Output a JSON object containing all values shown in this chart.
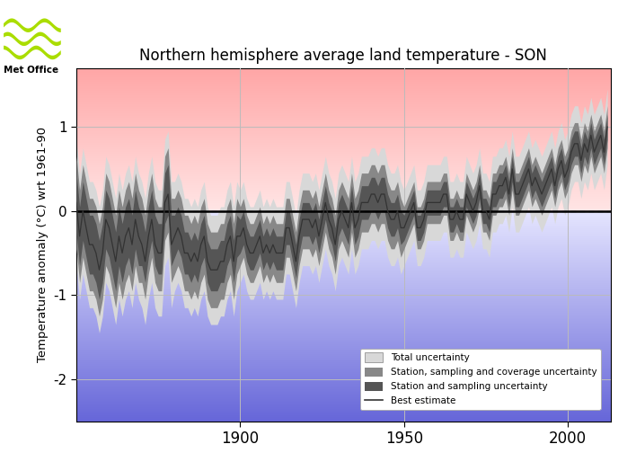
{
  "title": "Northern hemisphere average land temperature - SON",
  "ylabel": "Temperature anomaly (°C) wrt 1961-90",
  "xlim": [
    1850,
    2013
  ],
  "ylim": [
    -2.5,
    1.7
  ],
  "yticks": [
    -2,
    -1,
    0,
    1
  ],
  "xticks": [
    1900,
    1950,
    2000
  ],
  "years": [
    1850,
    1851,
    1852,
    1853,
    1854,
    1855,
    1856,
    1857,
    1858,
    1859,
    1860,
    1861,
    1862,
    1863,
    1864,
    1865,
    1866,
    1867,
    1868,
    1869,
    1870,
    1871,
    1872,
    1873,
    1874,
    1875,
    1876,
    1877,
    1878,
    1879,
    1880,
    1881,
    1882,
    1883,
    1884,
    1885,
    1886,
    1887,
    1888,
    1889,
    1890,
    1891,
    1892,
    1893,
    1894,
    1895,
    1896,
    1897,
    1898,
    1899,
    1900,
    1901,
    1902,
    1903,
    1904,
    1905,
    1906,
    1907,
    1908,
    1909,
    1910,
    1911,
    1912,
    1913,
    1914,
    1915,
    1916,
    1917,
    1918,
    1919,
    1920,
    1921,
    1922,
    1923,
    1924,
    1925,
    1926,
    1927,
    1928,
    1929,
    1930,
    1931,
    1932,
    1933,
    1934,
    1935,
    1936,
    1937,
    1938,
    1939,
    1940,
    1941,
    1942,
    1943,
    1944,
    1945,
    1946,
    1947,
    1948,
    1949,
    1950,
    1951,
    1952,
    1953,
    1954,
    1955,
    1956,
    1957,
    1958,
    1959,
    1960,
    1961,
    1962,
    1963,
    1964,
    1965,
    1966,
    1967,
    1968,
    1969,
    1970,
    1971,
    1972,
    1973,
    1974,
    1975,
    1976,
    1977,
    1978,
    1979,
    1980,
    1981,
    1982,
    1983,
    1984,
    1985,
    1986,
    1987,
    1988,
    1989,
    1990,
    1991,
    1992,
    1993,
    1994,
    1995,
    1996,
    1997,
    1998,
    1999,
    2000,
    2001,
    2002,
    2003,
    2004,
    2005,
    2006,
    2007,
    2008,
    2009,
    2010,
    2011,
    2012
  ],
  "best_estimate": [
    0.1,
    -0.3,
    0.0,
    -0.2,
    -0.4,
    -0.4,
    -0.5,
    -0.7,
    -0.5,
    -0.1,
    -0.2,
    -0.4,
    -0.6,
    -0.3,
    -0.5,
    -0.3,
    -0.2,
    -0.4,
    -0.1,
    -0.3,
    -0.4,
    -0.6,
    -0.3,
    -0.1,
    -0.4,
    -0.5,
    -0.5,
    0.1,
    0.2,
    -0.4,
    -0.3,
    -0.2,
    -0.3,
    -0.5,
    -0.5,
    -0.6,
    -0.5,
    -0.6,
    -0.4,
    -0.3,
    -0.6,
    -0.7,
    -0.7,
    -0.7,
    -0.6,
    -0.6,
    -0.4,
    -0.3,
    -0.6,
    -0.3,
    -0.3,
    -0.2,
    -0.4,
    -0.5,
    -0.5,
    -0.4,
    -0.3,
    -0.5,
    -0.4,
    -0.5,
    -0.4,
    -0.5,
    -0.5,
    -0.5,
    -0.2,
    -0.2,
    -0.4,
    -0.6,
    -0.3,
    -0.1,
    -0.1,
    -0.1,
    -0.2,
    -0.1,
    -0.3,
    -0.1,
    0.1,
    -0.1,
    -0.2,
    -0.4,
    -0.1,
    0.0,
    -0.1,
    -0.2,
    0.1,
    -0.2,
    -0.1,
    0.1,
    0.1,
    0.1,
    0.2,
    0.2,
    0.1,
    0.2,
    0.2,
    0.0,
    -0.1,
    -0.1,
    0.0,
    -0.2,
    -0.2,
    -0.1,
    0.0,
    0.1,
    -0.2,
    -0.2,
    -0.1,
    0.1,
    0.1,
    0.1,
    0.1,
    0.1,
    0.2,
    0.2,
    -0.1,
    -0.1,
    0.0,
    -0.1,
    -0.1,
    0.2,
    0.1,
    0.0,
    0.1,
    0.3,
    0.0,
    0.0,
    -0.1,
    0.2,
    0.2,
    0.3,
    0.3,
    0.4,
    0.2,
    0.5,
    0.2,
    0.2,
    0.3,
    0.4,
    0.5,
    0.3,
    0.4,
    0.3,
    0.2,
    0.3,
    0.4,
    0.5,
    0.3,
    0.5,
    0.6,
    0.4,
    0.5,
    0.7,
    0.8,
    0.8,
    0.6,
    0.8,
    0.7,
    0.9,
    0.7,
    0.8,
    0.9,
    0.7,
    1.0
  ],
  "total_unc_low": [
    -0.65,
    -1.05,
    -0.75,
    -0.95,
    -1.15,
    -1.15,
    -1.25,
    -1.45,
    -1.25,
    -0.85,
    -0.95,
    -1.15,
    -1.35,
    -1.05,
    -1.25,
    -1.05,
    -0.95,
    -1.15,
    -0.85,
    -1.05,
    -1.15,
    -1.35,
    -1.05,
    -0.85,
    -1.15,
    -1.25,
    -1.25,
    -0.65,
    -0.55,
    -1.15,
    -0.95,
    -0.85,
    -0.95,
    -1.15,
    -1.15,
    -1.25,
    -1.15,
    -1.25,
    -1.05,
    -0.95,
    -1.25,
    -1.35,
    -1.35,
    -1.35,
    -1.25,
    -1.25,
    -1.05,
    -0.95,
    -1.25,
    -0.95,
    -0.85,
    -0.75,
    -0.95,
    -1.05,
    -1.05,
    -0.95,
    -0.85,
    -1.05,
    -0.95,
    -1.05,
    -0.95,
    -1.05,
    -1.05,
    -1.05,
    -0.75,
    -0.75,
    -0.95,
    -1.15,
    -0.85,
    -0.65,
    -0.65,
    -0.65,
    -0.75,
    -0.65,
    -0.85,
    -0.65,
    -0.45,
    -0.65,
    -0.75,
    -0.95,
    -0.65,
    -0.55,
    -0.65,
    -0.75,
    -0.45,
    -0.75,
    -0.65,
    -0.45,
    -0.45,
    -0.45,
    -0.35,
    -0.35,
    -0.45,
    -0.35,
    -0.35,
    -0.55,
    -0.65,
    -0.65,
    -0.55,
    -0.75,
    -0.65,
    -0.55,
    -0.45,
    -0.35,
    -0.65,
    -0.65,
    -0.55,
    -0.35,
    -0.35,
    -0.35,
    -0.35,
    -0.35,
    -0.25,
    -0.25,
    -0.55,
    -0.55,
    -0.45,
    -0.55,
    -0.55,
    -0.25,
    -0.35,
    -0.45,
    -0.35,
    -0.15,
    -0.45,
    -0.45,
    -0.55,
    -0.25,
    -0.25,
    -0.15,
    -0.15,
    -0.05,
    -0.25,
    0.05,
    -0.25,
    -0.25,
    -0.15,
    -0.05,
    0.05,
    -0.15,
    -0.05,
    -0.15,
    -0.25,
    -0.15,
    -0.05,
    0.05,
    -0.15,
    0.05,
    0.15,
    -0.05,
    0.05,
    0.25,
    0.35,
    0.35,
    0.15,
    0.35,
    0.25,
    0.45,
    0.25,
    0.35,
    0.45,
    0.25,
    0.55
  ],
  "total_unc_high": [
    0.85,
    0.45,
    0.75,
    0.55,
    0.35,
    0.35,
    0.25,
    0.05,
    0.25,
    0.65,
    0.55,
    0.35,
    0.15,
    0.45,
    0.25,
    0.45,
    0.55,
    0.35,
    0.65,
    0.45,
    0.35,
    0.15,
    0.45,
    0.65,
    0.35,
    0.25,
    0.25,
    0.85,
    0.95,
    0.35,
    0.35,
    0.45,
    0.35,
    0.15,
    0.15,
    0.05,
    0.15,
    0.05,
    0.25,
    0.35,
    0.05,
    -0.05,
    -0.05,
    -0.05,
    0.05,
    0.05,
    0.25,
    0.35,
    0.05,
    0.35,
    0.25,
    0.35,
    0.15,
    0.05,
    0.05,
    0.15,
    0.25,
    0.05,
    0.15,
    0.05,
    0.15,
    0.05,
    0.05,
    0.05,
    0.35,
    0.35,
    0.15,
    -0.05,
    0.25,
    0.45,
    0.45,
    0.45,
    0.35,
    0.45,
    0.25,
    0.45,
    0.65,
    0.45,
    0.35,
    0.15,
    0.45,
    0.55,
    0.45,
    0.35,
    0.65,
    0.35,
    0.45,
    0.65,
    0.65,
    0.65,
    0.75,
    0.75,
    0.65,
    0.75,
    0.75,
    0.55,
    0.45,
    0.45,
    0.55,
    0.35,
    0.25,
    0.35,
    0.45,
    0.55,
    0.25,
    0.25,
    0.35,
    0.55,
    0.55,
    0.55,
    0.55,
    0.55,
    0.65,
    0.65,
    0.35,
    0.35,
    0.45,
    0.35,
    0.35,
    0.65,
    0.55,
    0.45,
    0.55,
    0.75,
    0.45,
    0.45,
    0.35,
    0.65,
    0.65,
    0.75,
    0.75,
    0.85,
    0.65,
    0.95,
    0.65,
    0.65,
    0.75,
    0.85,
    0.95,
    0.75,
    0.85,
    0.75,
    0.65,
    0.75,
    0.85,
    0.95,
    0.75,
    0.95,
    1.05,
    0.85,
    0.95,
    1.15,
    1.25,
    1.25,
    1.05,
    1.25,
    1.15,
    1.35,
    1.15,
    1.25,
    1.35,
    1.15,
    1.45
  ],
  "ssc_unc_low": [
    -0.45,
    -0.85,
    -0.55,
    -0.75,
    -0.95,
    -0.95,
    -1.05,
    -1.25,
    -1.05,
    -0.65,
    -0.75,
    -0.95,
    -1.15,
    -0.85,
    -1.05,
    -0.85,
    -0.75,
    -0.95,
    -0.65,
    -0.85,
    -0.85,
    -1.05,
    -0.75,
    -0.55,
    -0.85,
    -0.95,
    -0.95,
    -0.35,
    -0.25,
    -0.85,
    -0.75,
    -0.65,
    -0.75,
    -0.95,
    -0.95,
    -1.05,
    -0.95,
    -1.05,
    -0.85,
    -0.75,
    -1.05,
    -1.15,
    -1.15,
    -1.15,
    -1.05,
    -1.05,
    -0.85,
    -0.75,
    -1.05,
    -0.75,
    -0.65,
    -0.55,
    -0.75,
    -0.85,
    -0.85,
    -0.75,
    -0.65,
    -0.85,
    -0.75,
    -0.85,
    -0.75,
    -0.85,
    -0.85,
    -0.85,
    -0.55,
    -0.55,
    -0.75,
    -0.95,
    -0.65,
    -0.45,
    -0.45,
    -0.45,
    -0.55,
    -0.45,
    -0.65,
    -0.45,
    -0.25,
    -0.45,
    -0.55,
    -0.75,
    -0.45,
    -0.35,
    -0.45,
    -0.55,
    -0.25,
    -0.55,
    -0.45,
    -0.25,
    -0.25,
    -0.25,
    -0.15,
    -0.15,
    -0.25,
    -0.15,
    -0.15,
    -0.35,
    -0.45,
    -0.45,
    -0.35,
    -0.55,
    -0.45,
    -0.35,
    -0.25,
    -0.15,
    -0.45,
    -0.45,
    -0.35,
    -0.15,
    -0.15,
    -0.15,
    -0.15,
    -0.15,
    -0.05,
    -0.05,
    -0.35,
    -0.35,
    -0.25,
    -0.35,
    -0.35,
    -0.05,
    -0.15,
    -0.25,
    -0.15,
    0.05,
    -0.25,
    -0.25,
    -0.35,
    -0.05,
    -0.05,
    0.05,
    0.05,
    0.15,
    -0.05,
    0.25,
    -0.05,
    -0.05,
    0.05,
    0.15,
    0.25,
    0.05,
    0.15,
    0.05,
    -0.05,
    0.05,
    0.15,
    0.25,
    0.05,
    0.25,
    0.35,
    0.15,
    0.25,
    0.45,
    0.55,
    0.55,
    0.35,
    0.55,
    0.45,
    0.65,
    0.45,
    0.55,
    0.65,
    0.45,
    0.75
  ],
  "ssc_unc_high": [
    0.65,
    0.25,
    0.55,
    0.35,
    0.15,
    0.15,
    0.05,
    -0.15,
    0.05,
    0.45,
    0.35,
    0.15,
    -0.05,
    0.25,
    0.05,
    0.25,
    0.35,
    0.15,
    0.45,
    0.25,
    0.15,
    -0.05,
    0.25,
    0.45,
    0.15,
    0.05,
    0.05,
    0.65,
    0.75,
    0.15,
    0.15,
    0.25,
    0.15,
    -0.05,
    -0.05,
    -0.15,
    -0.05,
    -0.15,
    0.05,
    0.15,
    -0.15,
    -0.25,
    -0.25,
    -0.25,
    -0.15,
    -0.15,
    0.05,
    0.15,
    -0.15,
    0.15,
    0.05,
    0.15,
    -0.05,
    -0.15,
    -0.15,
    -0.05,
    0.05,
    -0.15,
    -0.05,
    -0.15,
    -0.05,
    -0.15,
    -0.15,
    -0.15,
    0.15,
    0.15,
    -0.05,
    -0.25,
    0.05,
    0.25,
    0.25,
    0.25,
    0.15,
    0.25,
    0.05,
    0.25,
    0.45,
    0.25,
    0.15,
    -0.05,
    0.25,
    0.35,
    0.25,
    0.15,
    0.45,
    0.15,
    0.25,
    0.45,
    0.45,
    0.45,
    0.55,
    0.55,
    0.45,
    0.55,
    0.55,
    0.35,
    0.25,
    0.25,
    0.35,
    0.15,
    0.05,
    0.15,
    0.25,
    0.35,
    0.05,
    0.05,
    0.15,
    0.35,
    0.35,
    0.35,
    0.35,
    0.35,
    0.45,
    0.45,
    0.15,
    0.15,
    0.25,
    0.15,
    0.15,
    0.45,
    0.35,
    0.25,
    0.35,
    0.55,
    0.25,
    0.25,
    0.15,
    0.45,
    0.45,
    0.55,
    0.55,
    0.65,
    0.45,
    0.75,
    0.45,
    0.45,
    0.55,
    0.65,
    0.75,
    0.55,
    0.65,
    0.55,
    0.45,
    0.55,
    0.65,
    0.75,
    0.55,
    0.75,
    0.85,
    0.65,
    0.75,
    0.95,
    1.05,
    1.05,
    0.85,
    1.05,
    0.95,
    1.15,
    0.95,
    1.05,
    1.15,
    0.95,
    1.25
  ],
  "ss_unc_low": [
    -0.25,
    -0.65,
    -0.35,
    -0.55,
    -0.75,
    -0.75,
    -0.85,
    -1.05,
    -0.85,
    -0.45,
    -0.55,
    -0.75,
    -0.95,
    -0.65,
    -0.85,
    -0.65,
    -0.55,
    -0.75,
    -0.45,
    -0.65,
    -0.65,
    -0.85,
    -0.55,
    -0.35,
    -0.65,
    -0.75,
    -0.75,
    -0.15,
    -0.05,
    -0.65,
    -0.55,
    -0.45,
    -0.55,
    -0.75,
    -0.75,
    -0.85,
    -0.75,
    -0.85,
    -0.65,
    -0.55,
    -0.85,
    -0.95,
    -0.95,
    -0.95,
    -0.85,
    -0.85,
    -0.65,
    -0.55,
    -0.85,
    -0.55,
    -0.5,
    -0.4,
    -0.6,
    -0.7,
    -0.7,
    -0.6,
    -0.5,
    -0.7,
    -0.6,
    -0.7,
    -0.6,
    -0.7,
    -0.7,
    -0.7,
    -0.4,
    -0.4,
    -0.6,
    -0.8,
    -0.5,
    -0.3,
    -0.3,
    -0.3,
    -0.4,
    -0.3,
    -0.5,
    -0.3,
    -0.1,
    -0.3,
    -0.4,
    -0.6,
    -0.3,
    -0.2,
    -0.3,
    -0.4,
    -0.1,
    -0.4,
    -0.3,
    -0.1,
    -0.1,
    -0.1,
    0.0,
    0.0,
    -0.1,
    0.0,
    0.0,
    -0.2,
    -0.3,
    -0.3,
    -0.2,
    -0.4,
    -0.35,
    -0.25,
    -0.15,
    -0.05,
    -0.35,
    -0.35,
    -0.25,
    -0.05,
    -0.05,
    -0.05,
    -0.05,
    -0.05,
    0.05,
    0.05,
    -0.25,
    -0.25,
    -0.15,
    -0.25,
    -0.25,
    0.05,
    -0.05,
    -0.15,
    -0.05,
    0.15,
    -0.15,
    -0.15,
    -0.25,
    0.05,
    0.05,
    0.15,
    0.15,
    0.25,
    0.05,
    0.35,
    0.05,
    0.05,
    0.15,
    0.25,
    0.35,
    0.15,
    0.25,
    0.15,
    0.05,
    0.15,
    0.25,
    0.35,
    0.15,
    0.35,
    0.45,
    0.25,
    0.35,
    0.55,
    0.65,
    0.65,
    0.45,
    0.65,
    0.55,
    0.75,
    0.55,
    0.65,
    0.75,
    0.55,
    0.85
  ],
  "ss_unc_high": [
    0.45,
    0.05,
    0.35,
    0.15,
    -0.05,
    -0.05,
    -0.15,
    -0.35,
    -0.15,
    0.25,
    0.15,
    -0.05,
    -0.25,
    0.05,
    -0.15,
    0.05,
    0.15,
    -0.05,
    0.25,
    0.05,
    -0.05,
    -0.25,
    0.05,
    0.25,
    -0.05,
    -0.15,
    -0.15,
    0.45,
    0.55,
    -0.05,
    -0.05,
    0.05,
    -0.05,
    -0.25,
    -0.25,
    -0.35,
    -0.25,
    -0.35,
    -0.15,
    -0.05,
    -0.35,
    -0.45,
    -0.45,
    -0.45,
    -0.35,
    -0.35,
    -0.15,
    -0.05,
    -0.35,
    -0.05,
    -0.1,
    0.0,
    -0.2,
    -0.3,
    -0.3,
    -0.2,
    -0.1,
    -0.3,
    -0.2,
    -0.3,
    -0.2,
    -0.3,
    -0.3,
    -0.3,
    0.0,
    0.0,
    -0.2,
    -0.4,
    -0.1,
    0.1,
    0.1,
    0.1,
    0.0,
    0.1,
    -0.1,
    0.1,
    0.3,
    0.1,
    0.0,
    -0.2,
    0.1,
    0.2,
    0.1,
    0.0,
    0.3,
    0.0,
    0.1,
    0.3,
    0.3,
    0.3,
    0.4,
    0.4,
    0.3,
    0.4,
    0.4,
    0.2,
    0.1,
    0.1,
    0.2,
    0.0,
    -0.05,
    0.05,
    0.15,
    0.25,
    -0.05,
    -0.05,
    0.05,
    0.25,
    0.25,
    0.25,
    0.25,
    0.25,
    0.35,
    0.35,
    0.05,
    0.05,
    0.15,
    0.05,
    0.05,
    0.35,
    0.25,
    0.15,
    0.25,
    0.45,
    0.15,
    0.15,
    0.05,
    0.35,
    0.35,
    0.45,
    0.45,
    0.55,
    0.35,
    0.65,
    0.35,
    0.35,
    0.45,
    0.55,
    0.65,
    0.45,
    0.55,
    0.45,
    0.35,
    0.45,
    0.55,
    0.65,
    0.45,
    0.65,
    0.75,
    0.55,
    0.65,
    0.85,
    0.95,
    0.95,
    0.75,
    0.95,
    0.85,
    1.05,
    0.85,
    0.95,
    1.05,
    0.85,
    1.15
  ],
  "color_total_unc": "#d8d8d8",
  "color_ssc_unc": "#888888",
  "color_ss_unc": "#555555",
  "color_best": "#333333",
  "legend_total_color": "#d8d8d8",
  "legend_ssc_color": "#888888",
  "legend_ss_color": "#555555"
}
